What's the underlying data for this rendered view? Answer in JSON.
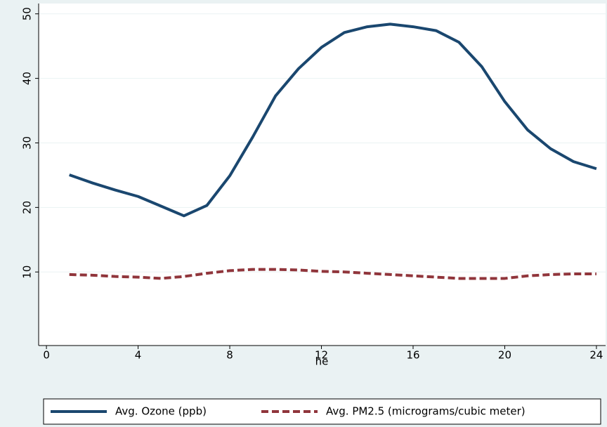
{
  "chart_data": {
    "type": "line",
    "x_label": "he",
    "x": [
      1,
      2,
      3,
      4,
      5,
      6,
      7,
      8,
      9,
      10,
      11,
      12,
      13,
      14,
      15,
      16,
      17,
      18,
      19,
      20,
      21,
      22,
      23,
      24
    ],
    "series": [
      {
        "name": "Avg. Ozone (ppb)",
        "color": "#1a476f",
        "dash": "solid",
        "values": [
          25.05,
          23.8,
          22.7,
          21.7,
          20.2,
          18.7,
          20.3,
          24.9,
          30.9,
          37.3,
          41.5,
          44.8,
          47.1,
          48.0,
          48.4,
          48.0,
          47.4,
          45.6,
          41.8,
          36.4,
          32.0,
          29.1,
          27.1,
          26.0
        ]
      },
      {
        "name": "Avg. PM2.5 (micrograms/cubic meter)",
        "color": "#90353b",
        "dash": "dashed",
        "values": [
          9.6,
          9.5,
          9.3,
          9.2,
          9.0,
          9.3,
          9.8,
          10.2,
          10.4,
          10.4,
          10.3,
          10.1,
          10.0,
          9.8,
          9.6,
          9.4,
          9.2,
          9.0,
          9.0,
          9.0,
          9.4,
          9.6,
          9.7,
          9.7
        ]
      }
    ],
    "xlim": [
      -0.34,
      24.4
    ],
    "xticks": [
      0,
      4,
      8,
      12,
      16,
      20,
      24
    ],
    "ylim": [
      -1.4,
      51.6
    ],
    "yticks": [
      10,
      20,
      30,
      40,
      50
    ],
    "grid": true,
    "legend": "bottom"
  }
}
